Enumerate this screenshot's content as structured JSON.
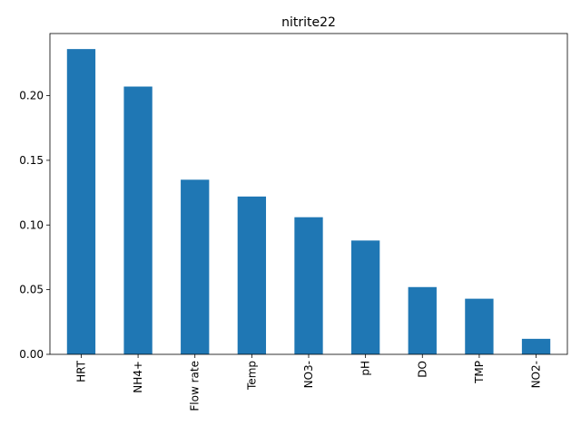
{
  "chart_data": {
    "type": "bar",
    "title": "nitrite22",
    "xlabel": "",
    "ylabel": "",
    "categories": [
      "HRT",
      "NH4+",
      "Flow rate",
      "Temp",
      "NO3-",
      "pH",
      "DO",
      "TMP",
      "NO2-"
    ],
    "values": [
      0.236,
      0.207,
      0.135,
      0.122,
      0.106,
      0.088,
      0.052,
      0.043,
      0.012
    ],
    "ylim": [
      0,
      0.248
    ],
    "yticks": [
      "0.00",
      "0.05",
      "0.10",
      "0.15",
      "0.20"
    ],
    "grid": false,
    "legend": "none",
    "bar_color": "#1f77b4"
  }
}
